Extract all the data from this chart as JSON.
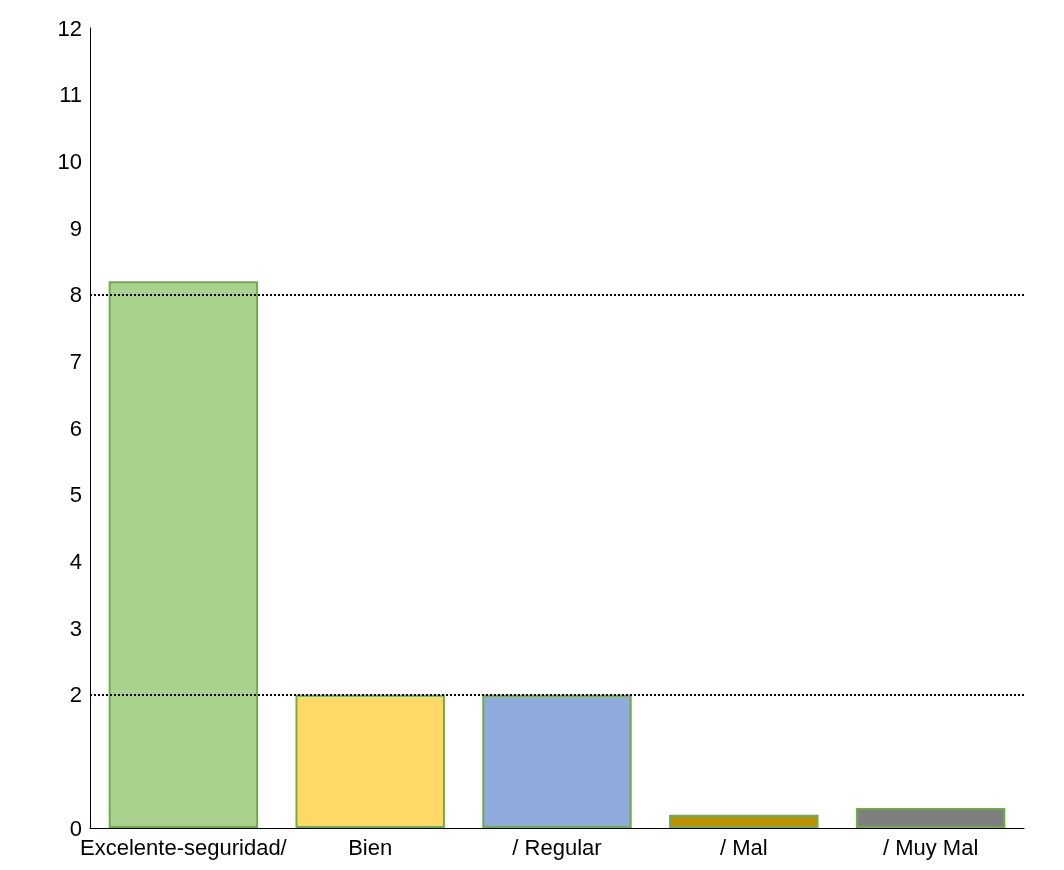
{
  "chart_data": {
    "type": "bar",
    "categories": [
      "Excelente-seguridad/",
      "Bien",
      "/ Regular",
      "/ Mal",
      "/ Muy Mal"
    ],
    "values": [
      8.2,
      2,
      2,
      0.2,
      0.3
    ],
    "colors": [
      "#a9d18e",
      "#ffd966",
      "#8faadc",
      "#bf9000",
      "#7f7f7f"
    ],
    "ylim": [
      0,
      12
    ],
    "yticks": [
      0,
      2,
      3,
      4,
      5,
      6,
      7,
      8,
      9,
      10,
      11,
      12
    ],
    "grid": false,
    "ref_lines": [
      {
        "axis": "y",
        "value": 8,
        "line_style": "dotted",
        "color": "#000000"
      },
      {
        "axis": "y",
        "value": 2,
        "line_style": "dotted",
        "color": "#000000"
      }
    ]
  }
}
